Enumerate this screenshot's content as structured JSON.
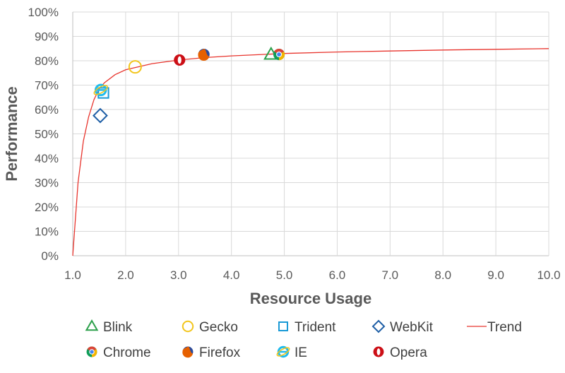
{
  "chart_data": {
    "type": "scatter",
    "title": "",
    "xlabel": "Resource Usage",
    "ylabel": "Performance",
    "xlim": [
      1.0,
      10.0
    ],
    "ylim": [
      0,
      100
    ],
    "x_ticks": [
      "1.0",
      "2.0",
      "3.0",
      "4.0",
      "5.0",
      "6.0",
      "7.0",
      "8.0",
      "9.0",
      "10.0"
    ],
    "y_ticks": [
      "0%",
      "10%",
      "20%",
      "30%",
      "40%",
      "50%",
      "60%",
      "70%",
      "80%",
      "90%",
      "100%"
    ],
    "grid": true,
    "legend_position": "bottom",
    "series": [
      {
        "name": "Blink",
        "marker": "triangle",
        "color": "#2ca04b",
        "points": [
          {
            "x": 4.75,
            "y": 82.5
          }
        ]
      },
      {
        "name": "Gecko",
        "marker": "circle",
        "color": "#f2c51c",
        "points": [
          {
            "x": 2.18,
            "y": 77.5
          }
        ]
      },
      {
        "name": "Trident",
        "marker": "square",
        "color": "#1a9ad6",
        "points": [
          {
            "x": 1.58,
            "y": 66.8
          }
        ]
      },
      {
        "name": "WebKit",
        "marker": "diamond",
        "color": "#1f5fa6",
        "points": [
          {
            "x": 1.52,
            "y": 57.5
          }
        ]
      },
      {
        "name": "Trend",
        "marker": "line",
        "color": "#e8342d",
        "points": [
          {
            "x": 1.0,
            "y": 0
          },
          {
            "x": 1.1,
            "y": 30
          },
          {
            "x": 1.2,
            "y": 47
          },
          {
            "x": 1.3,
            "y": 57
          },
          {
            "x": 1.4,
            "y": 64
          },
          {
            "x": 1.5,
            "y": 68.5
          },
          {
            "x": 1.6,
            "y": 71
          },
          {
            "x": 1.8,
            "y": 74.3
          },
          {
            "x": 2.0,
            "y": 76.3
          },
          {
            "x": 2.5,
            "y": 78.8
          },
          {
            "x": 3.0,
            "y": 80.3
          },
          {
            "x": 3.5,
            "y": 81.3
          },
          {
            "x": 4.0,
            "y": 82
          },
          {
            "x": 5.0,
            "y": 83
          },
          {
            "x": 6.0,
            "y": 83.6
          },
          {
            "x": 7.0,
            "y": 84
          },
          {
            "x": 8.0,
            "y": 84.4
          },
          {
            "x": 9.0,
            "y": 84.7
          },
          {
            "x": 10.0,
            "y": 85
          }
        ]
      },
      {
        "name": "Chrome",
        "marker": "chrome-icon",
        "color": "#db4437",
        "points": [
          {
            "x": 4.9,
            "y": 82.6
          }
        ]
      },
      {
        "name": "Firefox",
        "marker": "firefox-icon",
        "color": "#e66000",
        "points": [
          {
            "x": 3.48,
            "y": 82.6
          }
        ]
      },
      {
        "name": "IE",
        "marker": "ie-icon",
        "color": "#1ebbee",
        "points": [
          {
            "x": 1.53,
            "y": 68.0
          }
        ]
      },
      {
        "name": "Opera",
        "marker": "opera-icon",
        "color": "#cc0f16",
        "points": [
          {
            "x": 3.02,
            "y": 80.3
          }
        ]
      }
    ]
  },
  "colors": {
    "grid": "#d9d9d9",
    "axis": "#bfbfbf",
    "text": "#595959"
  }
}
